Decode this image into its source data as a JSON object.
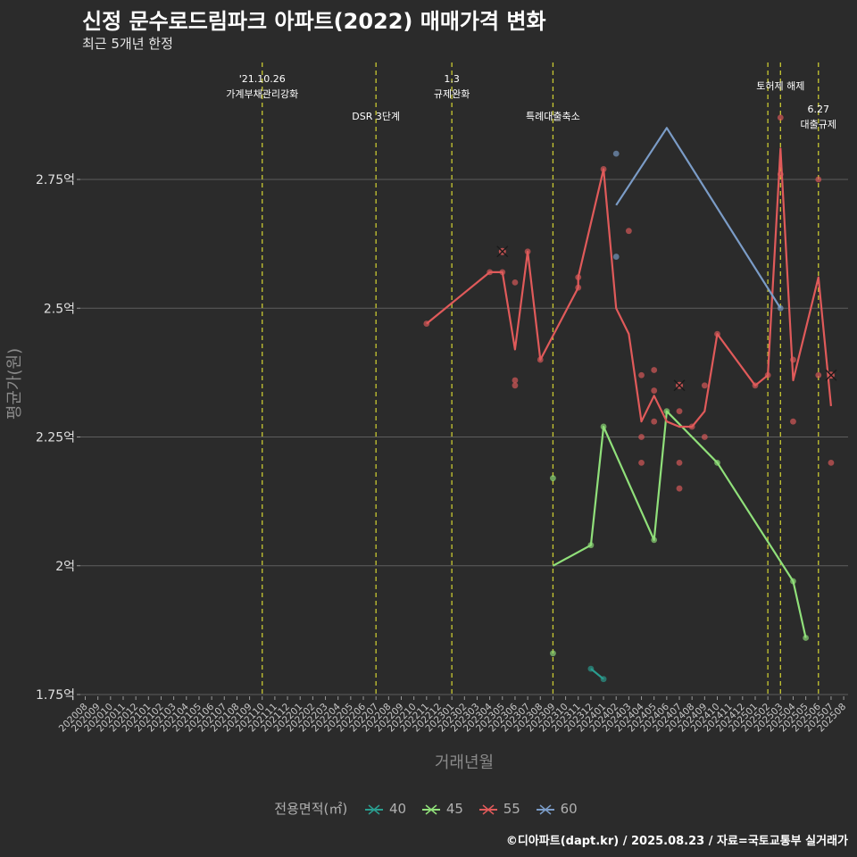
{
  "title": "신정 문수로드림파크 아파트(2022) 매매가격 변화",
  "subtitle": "최근 5개년 한정",
  "caption": "©디아파트(dapt.kr) / 2025.08.23 / 자료=국토교통부 실거래가",
  "colors": {
    "background": "#2b2b2b",
    "grid": "#5e5e5e",
    "event_line": "#c8c832",
    "s40": "#2a9d8f",
    "s45": "#90e07a",
    "s55": "#e05a5a",
    "s60": "#7b9cc7"
  },
  "chart_data": {
    "type": "line",
    "title": "신정 문수로드림파크 아파트(2022) 매매가격 변화",
    "xlabel": "거래년월",
    "ylabel": "평균가(원)",
    "ylim": [
      1.75,
      3.0
    ],
    "y_ticks": [
      {
        "value": 1.75,
        "label": "1.75억"
      },
      {
        "value": 2.0,
        "label": "2억"
      },
      {
        "value": 2.25,
        "label": "2.25억"
      },
      {
        "value": 2.5,
        "label": "2.5억"
      },
      {
        "value": 2.75,
        "label": "2.75억"
      }
    ],
    "x_categories": [
      "202008",
      "202009",
      "202010",
      "202011",
      "202012",
      "202101",
      "202102",
      "202103",
      "202104",
      "202105",
      "202106",
      "202107",
      "202108",
      "202109",
      "202110",
      "202111",
      "202112",
      "202201",
      "202202",
      "202203",
      "202204",
      "202205",
      "202206",
      "202207",
      "202208",
      "202209",
      "202210",
      "202211",
      "202212",
      "202301",
      "202302",
      "202303",
      "202304",
      "202305",
      "202306",
      "202307",
      "202308",
      "202309",
      "202310",
      "202311",
      "202312",
      "202401",
      "202402",
      "202403",
      "202404",
      "202405",
      "202406",
      "202407",
      "202408",
      "202409",
      "202410",
      "202411",
      "202412",
      "202501",
      "202502",
      "202503",
      "202504",
      "202505",
      "202506",
      "202507",
      "202508"
    ],
    "legend_title": "전용면적(㎡)",
    "events": [
      {
        "x": 14,
        "label1": "'21.10.26",
        "label2": "가계부채관리강화",
        "row": 0
      },
      {
        "x": 23,
        "label1": "DSR 3단계",
        "label2": "",
        "row": 2
      },
      {
        "x": 29,
        "label1": "1.3",
        "label2": "규제완화",
        "row": 0
      },
      {
        "x": 37,
        "label1": "특례대출축소",
        "label2": "",
        "row": 2
      },
      {
        "x": 54,
        "label1": "",
        "label2": "",
        "row": 0
      },
      {
        "x": 55,
        "label1": "토허제 해제",
        "label2": "",
        "row": 1
      },
      {
        "x": 58,
        "label1": "6.27",
        "label2": "대출규제",
        "row": 3
      }
    ],
    "series": [
      {
        "name": "40",
        "color": "#2a9d8f",
        "line": [
          [
            40,
            1.8
          ],
          [
            41,
            1.78
          ]
        ],
        "points": [
          [
            40,
            1.8
          ],
          [
            41,
            1.78
          ]
        ],
        "crosses": []
      },
      {
        "name": "45",
        "color": "#90e07a",
        "line": [
          [
            37,
            2.0
          ],
          [
            40,
            2.04
          ],
          [
            41,
            2.27
          ],
          [
            45,
            2.05
          ],
          [
            46,
            2.3
          ],
          [
            50,
            2.2
          ],
          [
            56,
            1.97
          ],
          [
            57,
            1.86
          ]
        ],
        "points": [
          [
            37,
            2.17
          ],
          [
            37,
            1.83
          ],
          [
            40,
            2.04
          ],
          [
            41,
            2.27
          ],
          [
            45,
            2.05
          ],
          [
            46,
            2.3
          ],
          [
            50,
            2.2
          ],
          [
            56,
            1.97
          ],
          [
            57,
            1.86
          ]
        ],
        "crosses": []
      },
      {
        "name": "55",
        "color": "#e05a5a",
        "line": [
          [
            27,
            2.47
          ],
          [
            32,
            2.57
          ],
          [
            33,
            2.57
          ],
          [
            34,
            2.42
          ],
          [
            35,
            2.61
          ],
          [
            36,
            2.4
          ],
          [
            39,
            2.54
          ],
          [
            39,
            2.56
          ],
          [
            41,
            2.77
          ],
          [
            42,
            2.5
          ],
          [
            43,
            2.45
          ],
          [
            44,
            2.28
          ],
          [
            45,
            2.33
          ],
          [
            46,
            2.28
          ],
          [
            47,
            2.27
          ],
          [
            48,
            2.27
          ],
          [
            49,
            2.3
          ],
          [
            50,
            2.45
          ],
          [
            53,
            2.35
          ],
          [
            54,
            2.37
          ],
          [
            55,
            2.81
          ],
          [
            56,
            2.36
          ],
          [
            58,
            2.56
          ],
          [
            59,
            2.31
          ]
        ],
        "points": [
          [
            27,
            2.47
          ],
          [
            32,
            2.57
          ],
          [
            33,
            2.57
          ],
          [
            34,
            2.55
          ],
          [
            34,
            2.36
          ],
          [
            34,
            2.35
          ],
          [
            35,
            2.61
          ],
          [
            36,
            2.4
          ],
          [
            39,
            2.54
          ],
          [
            39,
            2.56
          ],
          [
            41,
            2.77
          ],
          [
            43,
            2.65
          ],
          [
            44,
            2.37
          ],
          [
            44,
            2.25
          ],
          [
            44,
            2.2
          ],
          [
            45,
            2.38
          ],
          [
            45,
            2.34
          ],
          [
            45,
            2.28
          ],
          [
            47,
            2.3
          ],
          [
            47,
            2.2
          ],
          [
            47,
            2.15
          ],
          [
            48,
            2.27
          ],
          [
            49,
            2.35
          ],
          [
            49,
            2.25
          ],
          [
            50,
            2.45
          ],
          [
            53,
            2.35
          ],
          [
            54,
            2.37
          ],
          [
            55,
            2.87
          ],
          [
            55,
            2.76
          ],
          [
            56,
            2.4
          ],
          [
            56,
            2.28
          ],
          [
            58,
            2.75
          ],
          [
            58,
            2.37
          ],
          [
            59,
            2.2
          ]
        ],
        "crosses": [
          [
            33,
            2.61
          ],
          [
            47,
            2.35
          ],
          [
            59,
            2.37
          ]
        ]
      },
      {
        "name": "60",
        "color": "#7b9cc7",
        "line": [
          [
            42,
            2.7
          ],
          [
            46,
            2.85
          ],
          [
            55,
            2.5
          ]
        ],
        "points": [
          [
            42,
            2.8
          ],
          [
            42,
            2.6
          ],
          [
            55,
            2.5
          ]
        ],
        "crosses": []
      }
    ]
  }
}
